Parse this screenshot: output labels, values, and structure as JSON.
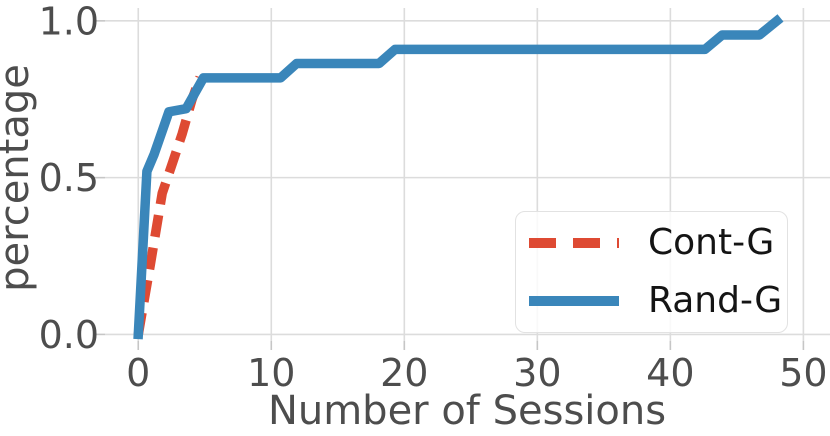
{
  "figure": {
    "background": "#ffffff",
    "grid_color": "#dcdcdc",
    "tick_mark_color": "#c6c6c6",
    "text_color": "#4d4d4d",
    "legend_text_color": "#141414",
    "legend_border_color": "#e2e2e2"
  },
  "chart_data": {
    "type": "line",
    "title": "",
    "xlabel": "Number of Sessions",
    "ylabel": "percentage",
    "xlim": [
      -2.5,
      52
    ],
    "ylim": [
      -0.021,
      1.041
    ],
    "xticks": [
      0,
      10,
      20,
      30,
      40,
      50
    ],
    "xtick_labels": [
      "0",
      "10",
      "20",
      "30",
      "40",
      "50"
    ],
    "yticks": [
      0,
      0.5,
      1.0
    ],
    "ytick_labels": [
      "0.0",
      "0.5",
      "1.0"
    ],
    "grid": true,
    "legend": {
      "position": "lower right",
      "entries": [
        "Cont-G",
        "Rand-G"
      ]
    },
    "series": [
      {
        "name": "Cont-G",
        "color": "#de4a33",
        "line_style": "dashed",
        "points": [
          [
            0,
            0
          ],
          [
            0.9,
            0.22
          ],
          [
            1.8,
            0.45
          ],
          [
            2.6,
            0.55
          ],
          [
            3.3,
            0.64
          ],
          [
            4.05,
            0.75
          ],
          [
            4.65,
            0.82
          ]
        ]
      },
      {
        "name": "Rand-G",
        "color": "#3a86ba",
        "line_style": "solid",
        "points": [
          [
            0,
            0
          ],
          [
            0.65,
            0.52
          ],
          [
            1.2,
            0.575
          ],
          [
            2.3,
            0.71
          ],
          [
            3.6,
            0.72
          ],
          [
            4.9,
            0.818
          ],
          [
            10.7,
            0.818
          ],
          [
            11.9,
            0.864
          ],
          [
            18.1,
            0.864
          ],
          [
            19.3,
            0.909
          ],
          [
            42.6,
            0.909
          ],
          [
            43.9,
            0.955
          ],
          [
            46.7,
            0.955
          ],
          [
            48,
            1.0
          ]
        ]
      }
    ]
  }
}
